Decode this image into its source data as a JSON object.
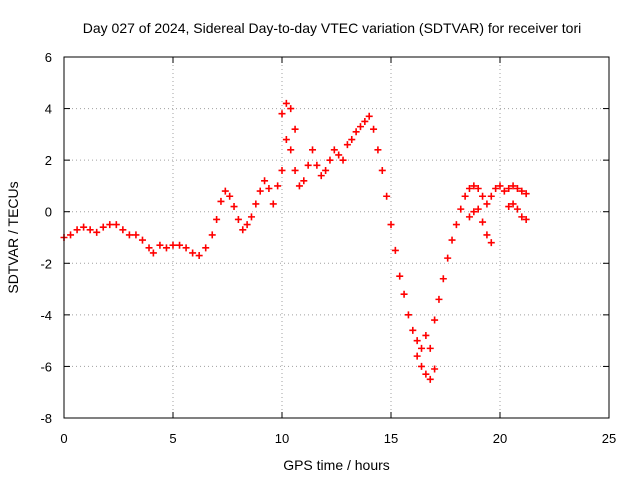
{
  "chart_data": {
    "type": "scatter",
    "title": "Day 027 of 2024, Sidereal Day-to-day VTEC variation (SDTVAR) for receiver tori",
    "xlabel": "GPS time / hours",
    "ylabel": "SDTVAR / TECUs",
    "xlim": [
      0,
      25
    ],
    "ylim": [
      -8,
      6
    ],
    "xticks": [
      0,
      5,
      10,
      15,
      20,
      25
    ],
    "yticks": [
      -8,
      -6,
      -4,
      -2,
      0,
      2,
      4,
      6
    ],
    "grid": true,
    "marker": "plus",
    "color": "#ff0000",
    "series": [
      {
        "x": [
          0.0,
          0.3,
          0.6,
          0.9,
          1.2,
          1.5,
          1.8,
          2.1,
          2.4,
          2.7,
          3.0,
          3.3,
          3.6,
          3.9,
          4.1,
          4.4,
          4.7,
          5.0,
          5.3,
          5.6,
          5.9,
          6.2,
          6.5,
          6.8,
          7.0,
          7.2,
          7.4,
          7.6,
          7.8,
          8.0,
          8.2,
          8.4,
          8.6,
          8.8,
          9.0,
          9.2,
          9.4,
          9.6,
          9.8,
          10.0,
          10.2,
          10.4,
          10.6,
          10.8,
          11.0,
          11.2,
          11.4,
          11.6,
          11.8,
          12.0,
          12.2,
          12.4,
          12.6,
          12.8,
          13.0,
          13.2,
          13.4,
          13.6,
          13.8,
          14.0,
          14.2,
          14.4,
          14.6,
          14.8,
          15.0,
          15.2,
          15.4,
          15.6,
          15.8,
          16.0,
          16.2,
          16.4,
          16.6,
          16.8,
          17.0,
          17.2,
          17.4,
          17.6,
          17.8,
          18.0,
          18.2,
          18.4,
          18.6,
          18.8,
          19.0,
          19.2,
          19.4,
          19.6,
          19.8,
          20.0,
          20.2,
          20.4,
          20.6,
          20.8,
          21.0,
          21.2
        ],
        "y": [
          -1.0,
          -0.9,
          -0.7,
          -0.6,
          -0.7,
          -0.8,
          -0.6,
          -0.5,
          -0.5,
          -0.7,
          -0.9,
          -0.9,
          -1.1,
          -1.4,
          -1.6,
          -1.3,
          -1.4,
          -1.3,
          -1.3,
          -1.4,
          -1.6,
          -1.7,
          -1.4,
          -0.9,
          -0.3,
          0.4,
          0.8,
          0.6,
          0.2,
          -0.3,
          -0.7,
          -0.5,
          -0.2,
          0.3,
          0.8,
          1.2,
          0.9,
          0.3,
          1.0,
          1.6,
          2.8,
          2.4,
          1.6,
          1.0,
          1.2,
          1.8,
          2.4,
          1.8,
          1.4,
          1.6,
          2.0,
          2.4,
          2.2,
          2.0,
          2.6,
          2.8,
          3.1,
          3.3,
          3.5,
          3.7,
          3.2,
          2.4,
          1.6,
          0.6,
          -0.5,
          -1.5,
          -2.5,
          -3.2,
          -4.0,
          -4.6,
          -5.0,
          -5.3,
          -4.8,
          -5.3,
          -4.2,
          -3.4,
          -2.6,
          -1.8,
          -1.1,
          -0.5,
          0.1,
          0.6,
          0.9,
          1.0,
          0.9,
          0.6,
          0.3,
          0.6,
          0.9,
          1.0,
          0.8,
          0.9,
          1.0,
          0.9,
          0.8,
          0.7
        ]
      },
      {
        "x": [
          10.0,
          10.2,
          10.4,
          10.6,
          16.2,
          16.4,
          16.6,
          16.8,
          17.0,
          18.6,
          18.8,
          19.0,
          19.2,
          19.4,
          19.6,
          20.4,
          20.6,
          20.8,
          21.0,
          21.2
        ],
        "y": [
          3.8,
          4.2,
          4.0,
          3.2,
          -5.6,
          -6.0,
          -6.3,
          -6.5,
          -6.1,
          -0.2,
          0.0,
          0.1,
          -0.4,
          -0.9,
          -1.2,
          0.2,
          0.3,
          0.1,
          -0.2,
          -0.3
        ]
      }
    ]
  }
}
